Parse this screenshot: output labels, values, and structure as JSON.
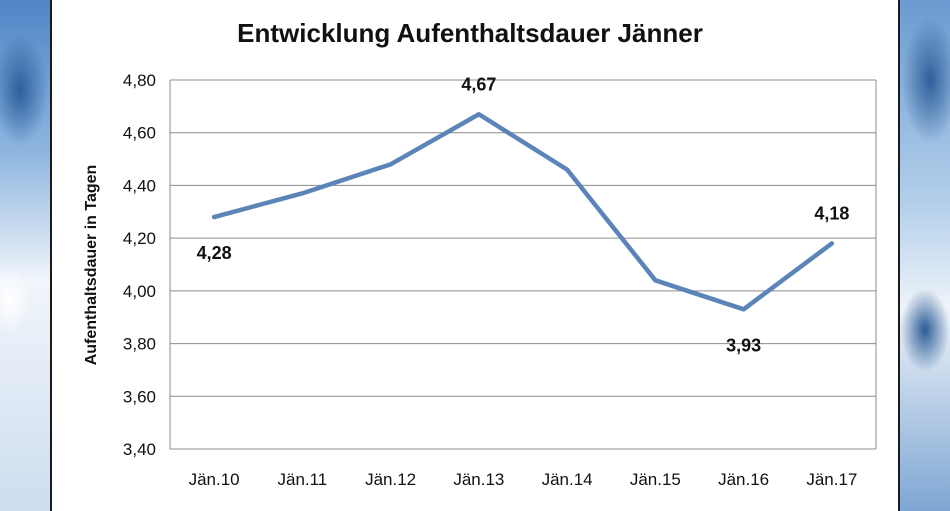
{
  "chart_data": {
    "type": "line",
    "title": "Entwicklung Aufenthaltsdauer Jänner",
    "ylabel": "Aufenthaltsdauer in Tagen",
    "xlabel": "",
    "categories": [
      "Jän.10",
      "Jän.11",
      "Jän.12",
      "Jän.13",
      "Jän.14",
      "Jän.15",
      "Jän.16",
      "Jän.17"
    ],
    "series": [
      {
        "values": [
          4.28,
          4.37,
          4.48,
          4.67,
          4.46,
          4.04,
          3.93,
          4.18
        ]
      }
    ],
    "data_labels": [
      {
        "index": 0,
        "text": "4,28",
        "position": "below"
      },
      {
        "index": 3,
        "text": "4,67",
        "position": "above"
      },
      {
        "index": 6,
        "text": "3,93",
        "position": "below"
      },
      {
        "index": 7,
        "text": "4,18",
        "position": "above"
      }
    ],
    "ylim": [
      3.4,
      4.8
    ],
    "yticks": [
      "3,40",
      "3,60",
      "3,80",
      "4,00",
      "4,20",
      "4,40",
      "4,60",
      "4,80"
    ],
    "ytick_values": [
      3.4,
      3.6,
      3.8,
      4.0,
      4.2,
      4.4,
      4.6,
      4.8
    ],
    "grid": true,
    "line_color": "#5b84b8"
  }
}
